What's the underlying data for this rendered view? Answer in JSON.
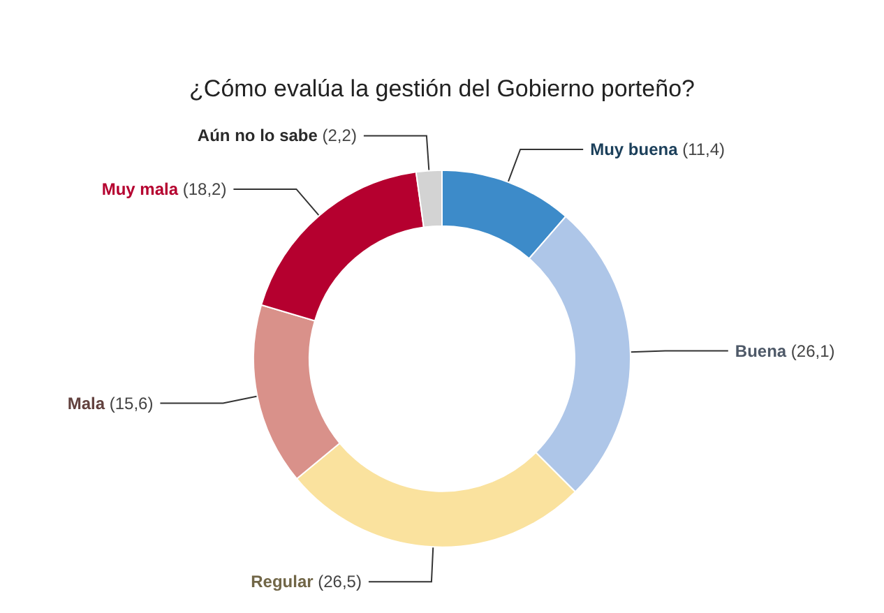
{
  "chart_data": {
    "type": "donut",
    "title": "¿Cómo evalúa la gestión del Gobierno porteño?",
    "categories": [
      "Muy buena",
      "Buena",
      "Regular",
      "Mala",
      "Muy mala",
      "Aún no lo sabe"
    ],
    "values": [
      11.4,
      26.1,
      26.5,
      15.6,
      18.2,
      2.2
    ],
    "value_labels": [
      "(11,4)",
      "(26,1)",
      "(26,5)",
      "(15,6)",
      "(18,2)",
      "(2,2)"
    ],
    "colors": [
      "#3d8bc9",
      "#aec6e8",
      "#fae29e",
      "#d9918a",
      "#b5002f",
      "#d3d3d3"
    ],
    "legend": false
  }
}
